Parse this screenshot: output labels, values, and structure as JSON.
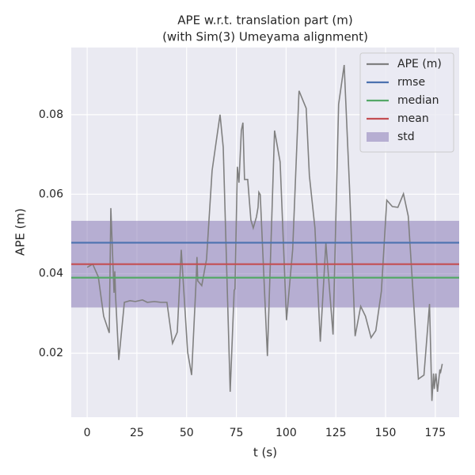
{
  "chart_data": {
    "type": "line",
    "title": "APE w.r.t. translation part (m)",
    "subtitle": "(with Sim(3) Umeyama alignment)",
    "x_label": "t (s)",
    "y_label": "APE (m)",
    "xlim": [
      -8,
      187
    ],
    "ylim": [
      0.0039,
      0.0969
    ],
    "xticks": [
      0,
      25,
      50,
      75,
      100,
      125,
      150,
      175
    ],
    "yticks": [
      0.02,
      0.04,
      0.06,
      0.08
    ],
    "grid": true,
    "legend": "upper right",
    "series": [
      {
        "name": "APE (m)",
        "color": "#808080",
        "x": [
          0,
          2.8,
          5.6,
          8.3,
          11.1,
          11.9,
          13.5,
          13.9,
          14.3,
          15.9,
          18.7,
          21.5,
          24.2,
          27.8,
          30.2,
          33.8,
          37.0,
          40.1,
          42.9,
          45.3,
          47.3,
          50.5,
          52.5,
          54.8,
          55.2,
          55.6,
          57.6,
          60.0,
          62.8,
          64.8,
          66.8,
          68.4,
          71.9,
          73.9,
          74.3,
          75.5,
          76.3,
          77.5,
          78.3,
          79.1,
          80.7,
          82.3,
          83.5,
          85.1,
          85.9,
          86.3,
          87.0,
          90.6,
          94.2,
          97.0,
          100.2,
          103.3,
          106.5,
          110.1,
          111.7,
          114.5,
          117.2,
          120.0,
          123.6,
          126.4,
          129.2,
          131.9,
          134.7,
          137.5,
          139.9,
          142.7,
          145.1,
          147.9,
          150.6,
          153.4,
          156.2,
          159.0,
          161.4,
          164.2,
          166.5,
          169.3,
          172.1,
          173.3,
          174.1,
          174.5,
          175.3,
          176.1,
          177.3,
          177.7,
          178.5
        ],
        "values": [
          0.0416,
          0.0424,
          0.0392,
          0.0293,
          0.0251,
          0.0565,
          0.0352,
          0.0406,
          0.0342,
          0.0183,
          0.0328,
          0.0332,
          0.033,
          0.0334,
          0.0328,
          0.033,
          0.0328,
          0.0328,
          0.0225,
          0.0253,
          0.046,
          0.0203,
          0.0145,
          0.0386,
          0.0442,
          0.0382,
          0.037,
          0.0436,
          0.0659,
          0.073,
          0.08,
          0.0718,
          0.0103,
          0.0358,
          0.0362,
          0.0669,
          0.0629,
          0.076,
          0.078,
          0.0637,
          0.0637,
          0.0535,
          0.0515,
          0.0543,
          0.0567,
          0.0605,
          0.0599,
          0.0193,
          0.076,
          0.0681,
          0.0283,
          0.046,
          0.086,
          0.0816,
          0.0647,
          0.0515,
          0.0229,
          0.0478,
          0.0247,
          0.0826,
          0.0925,
          0.0615,
          0.0243,
          0.0318,
          0.0293,
          0.0239,
          0.0257,
          0.0356,
          0.0585,
          0.0569,
          0.0567,
          0.0601,
          0.0545,
          0.0322,
          0.0135,
          0.0145,
          0.0324,
          0.008,
          0.0149,
          0.011,
          0.0149,
          0.0103,
          0.0159,
          0.0153,
          0.0173
        ]
      }
    ],
    "hlines": [
      {
        "name": "rmse",
        "color": "#4c72b0",
        "value": 0.0478
      },
      {
        "name": "median",
        "color": "#55a868",
        "value": 0.039
      },
      {
        "name": "mean",
        "color": "#c44e52",
        "value": 0.0424
      }
    ],
    "band": {
      "name": "std",
      "color": "#8172b2",
      "value": 0.0109
    }
  }
}
